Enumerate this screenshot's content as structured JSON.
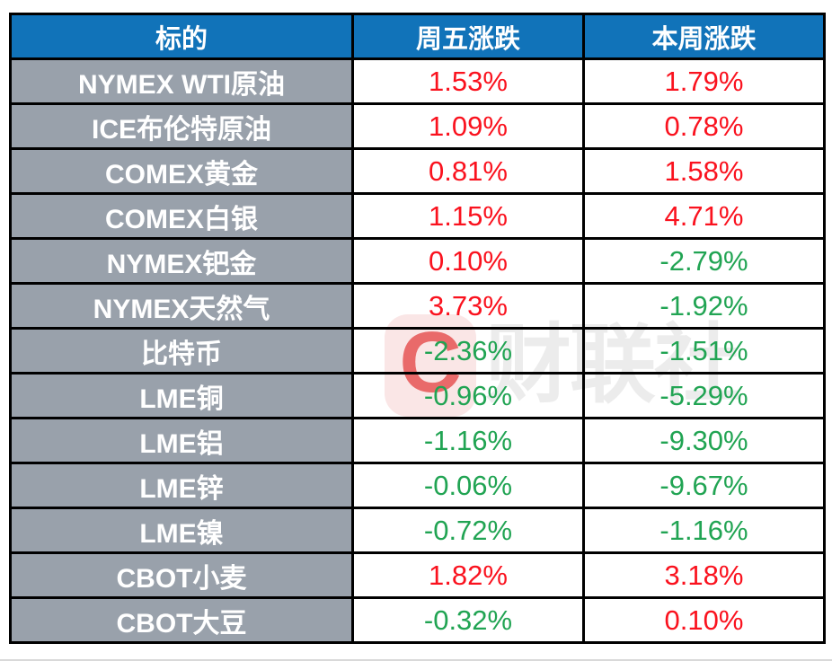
{
  "colors": {
    "header_bg": "#1173b9",
    "asset_col_bg": "#99a1ab",
    "up": "#fa121e",
    "down": "#21a453",
    "border": "#000000",
    "watermark_pink": "#fae6e6",
    "watermark_red": "#e96a6a",
    "watermark_gray": "#ececec"
  },
  "watermark": {
    "logo_letter": "C",
    "text": "财联社"
  },
  "table": {
    "columns": [
      {
        "id": "asset",
        "label": "标的"
      },
      {
        "id": "friday",
        "label": "周五涨跌"
      },
      {
        "id": "week",
        "label": "本周涨跌"
      }
    ],
    "rows": [
      {
        "asset": "NYMEX WTI原油",
        "friday": "1.53%",
        "week": "1.79%"
      },
      {
        "asset": "ICE布伦特原油",
        "friday": "1.09%",
        "week": "0.78%"
      },
      {
        "asset": "COMEX黄金",
        "friday": "0.81%",
        "week": "1.58%"
      },
      {
        "asset": "COMEX白银",
        "friday": "1.15%",
        "week": "4.71%"
      },
      {
        "asset": "NYMEX钯金",
        "friday": "0.10%",
        "week": "-2.79%"
      },
      {
        "asset": "NYMEX天然气",
        "friday": "3.73%",
        "week": "-1.92%"
      },
      {
        "asset": "比特币",
        "friday": "-2.36%",
        "week": "-1.51%"
      },
      {
        "asset": "LME铜",
        "friday": "-0.96%",
        "week": "-5.29%"
      },
      {
        "asset": "LME铝",
        "friday": "-1.16%",
        "week": "-9.30%"
      },
      {
        "asset": "LME锌",
        "friday": "-0.06%",
        "week": "-9.67%"
      },
      {
        "asset": "LME镍",
        "friday": "-0.72%",
        "week": "-1.16%"
      },
      {
        "asset": "CBOT小麦",
        "friday": "1.82%",
        "week": "3.18%"
      },
      {
        "asset": "CBOT大豆",
        "friday": "-0.32%",
        "week": "0.10%"
      }
    ]
  },
  "chart_data": {
    "type": "table",
    "title": "",
    "columns": [
      "标的",
      "周五涨跌",
      "本周涨跌"
    ],
    "rows": [
      [
        "NYMEX WTI原油",
        "1.53%",
        "1.79%"
      ],
      [
        "ICE布伦特原油",
        "1.09%",
        "0.78%"
      ],
      [
        "COMEX黄金",
        "0.81%",
        "1.58%"
      ],
      [
        "COMEX白银",
        "1.15%",
        "4.71%"
      ],
      [
        "NYMEX钯金",
        "0.10%",
        "-2.79%"
      ],
      [
        "NYMEX天然气",
        "3.73%",
        "-1.92%"
      ],
      [
        "比特币",
        "-2.36%",
        "-1.51%"
      ],
      [
        "LME铜",
        "-0.96%",
        "-5.29%"
      ],
      [
        "LME铝",
        "-1.16%",
        "-9.30%"
      ],
      [
        "LME锌",
        "-0.06%",
        "-9.67%"
      ],
      [
        "LME镍",
        "-0.72%",
        "-1.16%"
      ],
      [
        "CBOT小麦",
        "1.82%",
        "3.18%"
      ],
      [
        "CBOT大豆",
        "-0.32%",
        "0.10%"
      ]
    ],
    "color_rule": "positive values red (#fa121e), negative values green (#21a453)"
  }
}
